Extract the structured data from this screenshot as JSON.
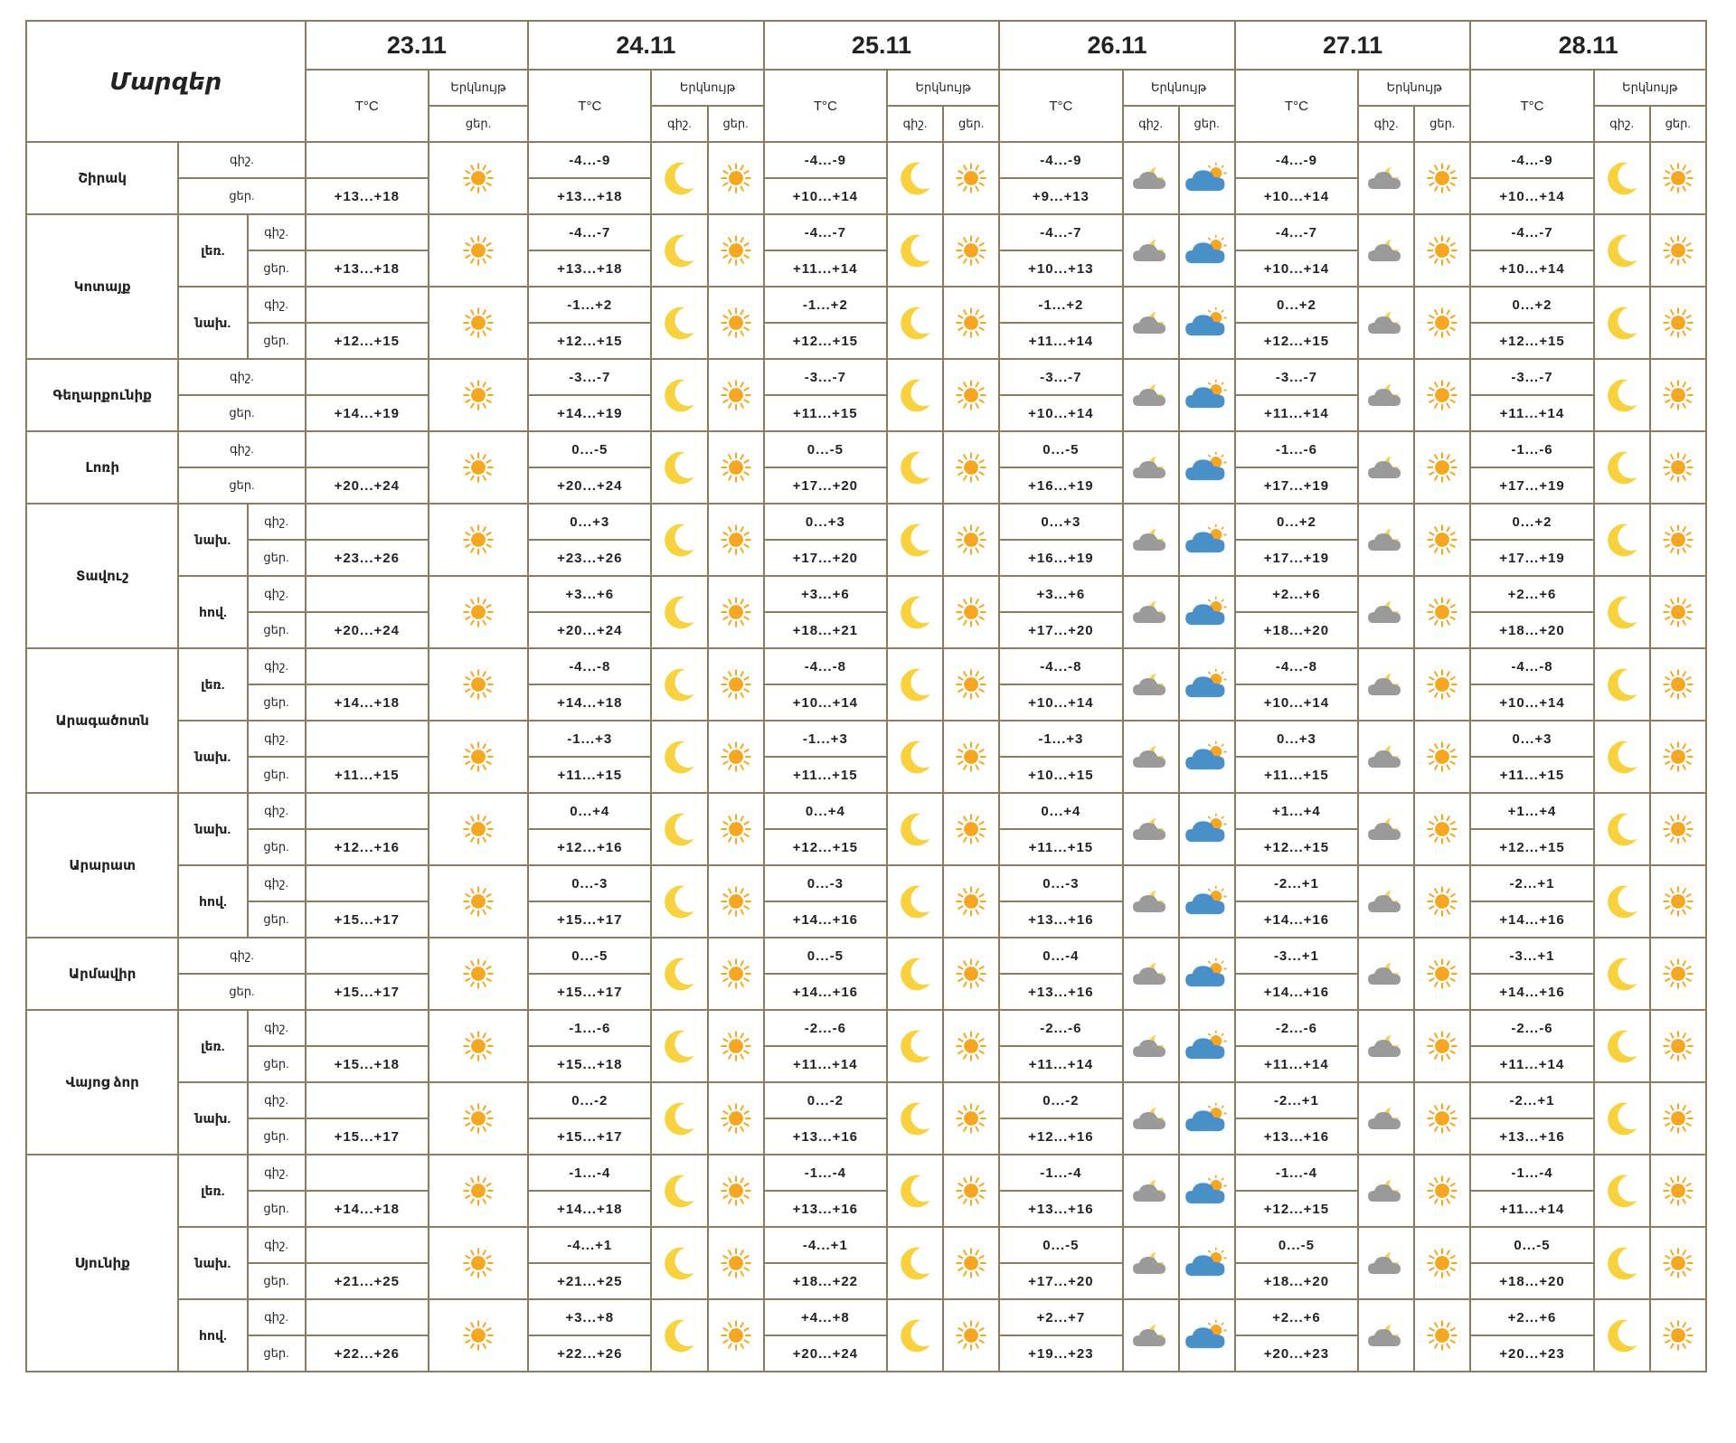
{
  "header": {
    "regions_label": "Մարզեր",
    "temp_label": "T°C",
    "cloud_label": "Երկնույթ",
    "night_label": "գիշ.",
    "day_label": "ցեր."
  },
  "dates": [
    "23.11",
    "24.11",
    "25.11",
    "26.11",
    "27.11",
    "28.11"
  ],
  "day_icon_series": [
    "sun",
    "sun",
    "sun",
    "partly-cloudy-day",
    "sun",
    "sun"
  ],
  "night_icon_series": [
    "",
    "moon",
    "moon",
    "cloud-night",
    "cloud-night",
    "moon"
  ],
  "colors": {
    "border": "#8a7a60",
    "sun": "#f5a623",
    "moon": "#f7d23e",
    "cloud_gray": "#9a9a9a",
    "cloud_blue": "#4a90c8"
  },
  "regions": [
    {
      "name": "Շիրակ",
      "subs": [
        {
          "name": "",
          "night": [
            "",
            "-4...-9",
            "-4...-9",
            "-4...-9",
            "-4...-9",
            "-4...-9"
          ],
          "day": [
            "+13...+18",
            "+13...+18",
            "+10...+14",
            "+9...+13",
            "+10...+14",
            "+10...+14"
          ]
        }
      ]
    },
    {
      "name": "Կոտայք",
      "subs": [
        {
          "name": "լեռ.",
          "night": [
            "",
            "-4...-7",
            "-4...-7",
            "-4...-7",
            "-4...-7",
            "-4...-7"
          ],
          "day": [
            "+13...+18",
            "+13...+18",
            "+11...+14",
            "+10...+13",
            "+10...+14",
            "+10...+14"
          ]
        },
        {
          "name": "նախ.",
          "night": [
            "",
            "-1...+2",
            "-1...+2",
            "-1...+2",
            "0...+2",
            "0...+2"
          ],
          "day": [
            "+12...+15",
            "+12...+15",
            "+12...+15",
            "+11...+14",
            "+12...+15",
            "+12...+15"
          ]
        }
      ]
    },
    {
      "name": "Գեղարքունիք",
      "subs": [
        {
          "name": "",
          "night": [
            "",
            "-3...-7",
            "-3...-7",
            "-3...-7",
            "-3...-7",
            "-3...-7"
          ],
          "day": [
            "+14...+19",
            "+14...+19",
            "+11...+15",
            "+10...+14",
            "+11...+14",
            "+11...+14"
          ]
        }
      ]
    },
    {
      "name": "Լոռի",
      "subs": [
        {
          "name": "",
          "night": [
            "",
            "0...-5",
            "0...-5",
            "0...-5",
            "-1...-6",
            "-1...-6"
          ],
          "day": [
            "+20...+24",
            "+20...+24",
            "+17...+20",
            "+16...+19",
            "+17...+19",
            "+17...+19"
          ]
        }
      ]
    },
    {
      "name": "Տավուշ",
      "subs": [
        {
          "name": "նախ.",
          "night": [
            "",
            "0...+3",
            "0...+3",
            "0...+3",
            "0...+2",
            "0...+2"
          ],
          "day": [
            "+23...+26",
            "+23...+26",
            "+17...+20",
            "+16...+19",
            "+17...+19",
            "+17...+19"
          ]
        },
        {
          "name": "հով.",
          "night": [
            "",
            "+3...+6",
            "+3...+6",
            "+3...+6",
            "+2...+6",
            "+2...+6"
          ],
          "day": [
            "+20...+24",
            "+20...+24",
            "+18...+21",
            "+17...+20",
            "+18...+20",
            "+18...+20"
          ]
        }
      ]
    },
    {
      "name": "Արագածոտն",
      "subs": [
        {
          "name": "լեռ.",
          "night": [
            "",
            "-4...-8",
            "-4...-8",
            "-4...-8",
            "-4...-8",
            "-4...-8"
          ],
          "day": [
            "+14...+18",
            "+14...+18",
            "+10...+14",
            "+10...+14",
            "+10...+14",
            "+10...+14"
          ]
        },
        {
          "name": "նախ.",
          "night": [
            "",
            "-1...+3",
            "-1...+3",
            "-1...+3",
            "0...+3",
            "0...+3"
          ],
          "day": [
            "+11...+15",
            "+11...+15",
            "+11...+15",
            "+10...+15",
            "+11...+15",
            "+11...+15"
          ]
        }
      ]
    },
    {
      "name": "Արարատ",
      "subs": [
        {
          "name": "նախ.",
          "night": [
            "",
            "0...+4",
            "0...+4",
            "0...+4",
            "+1...+4",
            "+1...+4"
          ],
          "day": [
            "+12...+16",
            "+12...+16",
            "+12...+15",
            "+11...+15",
            "+12...+15",
            "+12...+15"
          ]
        },
        {
          "name": "հով.",
          "night": [
            "",
            "0...-3",
            "0...-3",
            "0...-3",
            "-2...+1",
            "-2...+1"
          ],
          "day": [
            "+15...+17",
            "+15...+17",
            "+14...+16",
            "+13...+16",
            "+14...+16",
            "+14...+16"
          ]
        }
      ]
    },
    {
      "name": "Արմավիր",
      "subs": [
        {
          "name": "",
          "night": [
            "",
            "0...-5",
            "0...-5",
            "0...-4",
            "-3...+1",
            "-3...+1"
          ],
          "day": [
            "+15...+17",
            "+15...+17",
            "+14...+16",
            "+13...+16",
            "+14...+16",
            "+14...+16"
          ]
        }
      ]
    },
    {
      "name": "Վայոց ձոր",
      "subs": [
        {
          "name": "լեռ.",
          "night": [
            "",
            "-1...-6",
            "-2...-6",
            "-2...-6",
            "-2...-6",
            "-2...-6"
          ],
          "day": [
            "+15...+18",
            "+15...+18",
            "+11...+14",
            "+11...+14",
            "+11...+14",
            "+11...+14"
          ]
        },
        {
          "name": "նախ.",
          "night": [
            "",
            "0...-2",
            "0...-2",
            "0...-2",
            "-2...+1",
            "-2...+1"
          ],
          "day": [
            "+15...+17",
            "+15...+17",
            "+13...+16",
            "+12...+16",
            "+13...+16",
            "+13...+16"
          ]
        }
      ]
    },
    {
      "name": "Սյունիք",
      "subs": [
        {
          "name": "լեռ.",
          "night": [
            "",
            "-1...-4",
            "-1...-4",
            "-1...-4",
            "-1...-4",
            "-1...-4"
          ],
          "day": [
            "+14...+18",
            "+14...+18",
            "+13...+16",
            "+13...+16",
            "+12...+15",
            "+11...+14"
          ]
        },
        {
          "name": "նախ.",
          "night": [
            "",
            "-4...+1",
            "-4...+1",
            "0...-5",
            "0...-5",
            "0...-5"
          ],
          "day": [
            "+21...+25",
            "+21...+25",
            "+18...+22",
            "+17...+20",
            "+18...+20",
            "+18...+20"
          ]
        },
        {
          "name": "հով.",
          "night": [
            "",
            "+3...+8",
            "+4...+8",
            "+2...+7",
            "+2...+6",
            "+2...+6"
          ],
          "day": [
            "+22...+26",
            "+22...+26",
            "+20...+24",
            "+19...+23",
            "+20...+23",
            "+20...+23"
          ]
        }
      ]
    }
  ]
}
